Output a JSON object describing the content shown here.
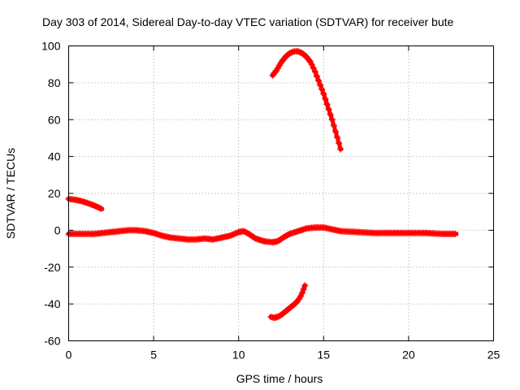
{
  "chart_data": {
    "type": "scatter",
    "title": "Day 303 of 2014, Sidereal Day-to-day VTEC variation (SDTVAR) for receiver bute",
    "xlabel": "GPS time / hours",
    "ylabel": "SDTVAR / TECUs",
    "xlim": [
      0,
      25
    ],
    "ylim": [
      -60,
      100
    ],
    "xticks": [
      0,
      5,
      10,
      15,
      20,
      25
    ],
    "yticks": [
      -60,
      -40,
      -20,
      0,
      20,
      40,
      60,
      80,
      100
    ],
    "grid": true,
    "marker": "+",
    "color": "#ff0000",
    "series": [
      {
        "name": "main-trace",
        "x": [
          0,
          0.5,
          1,
          1.5,
          2,
          2.5,
          3,
          3.5,
          4,
          4.5,
          5,
          5.5,
          6,
          6.5,
          7,
          7.5,
          8,
          8.5,
          9,
          9.5,
          10,
          10.3,
          10.6,
          11,
          11.5,
          12,
          12.3,
          12.7,
          13,
          13.5,
          14,
          14.5,
          15,
          15.5,
          16,
          17,
          18,
          19,
          20,
          21,
          22,
          22.8
        ],
        "y": [
          -2,
          -2,
          -2,
          -2,
          -1.5,
          -1,
          -0.5,
          0,
          0,
          -0.5,
          -1.5,
          -3,
          -4,
          -4.5,
          -5,
          -5,
          -4.5,
          -5,
          -4,
          -3,
          -1,
          -0.5,
          -2,
          -4.5,
          -6,
          -6.5,
          -6,
          -3.5,
          -2,
          -0.5,
          1,
          1.5,
          1.5,
          0.5,
          -0.5,
          -1,
          -1.5,
          -1.5,
          -1.5,
          -1.5,
          -2,
          -2
        ]
      },
      {
        "name": "early-positive",
        "x": [
          0,
          0.25,
          0.5,
          0.75,
          1,
          1.25,
          1.5,
          1.75,
          1.95
        ],
        "y": [
          17,
          16.7,
          16.3,
          15.8,
          15.1,
          14.3,
          13.4,
          12.4,
          11.5
        ]
      },
      {
        "name": "high-arc",
        "x": [
          12,
          12.25,
          12.5,
          12.75,
          13,
          13.25,
          13.5,
          13.75,
          14,
          14.25,
          14.5,
          14.75,
          15,
          15.25,
          15.5,
          15.75,
          16
        ],
        "y": [
          84,
          87,
          91,
          94,
          96,
          97,
          97,
          96,
          94,
          91,
          86,
          80,
          74,
          67,
          60,
          52,
          44
        ]
      },
      {
        "name": "low-arc",
        "x": [
          11.9,
          12.1,
          12.3,
          12.5,
          12.7,
          12.9,
          13.1,
          13.3,
          13.5,
          13.7,
          13.9
        ],
        "y": [
          -47,
          -47.5,
          -47,
          -46,
          -44.5,
          -43,
          -41.5,
          -40,
          -38,
          -35,
          -30
        ]
      }
    ]
  }
}
